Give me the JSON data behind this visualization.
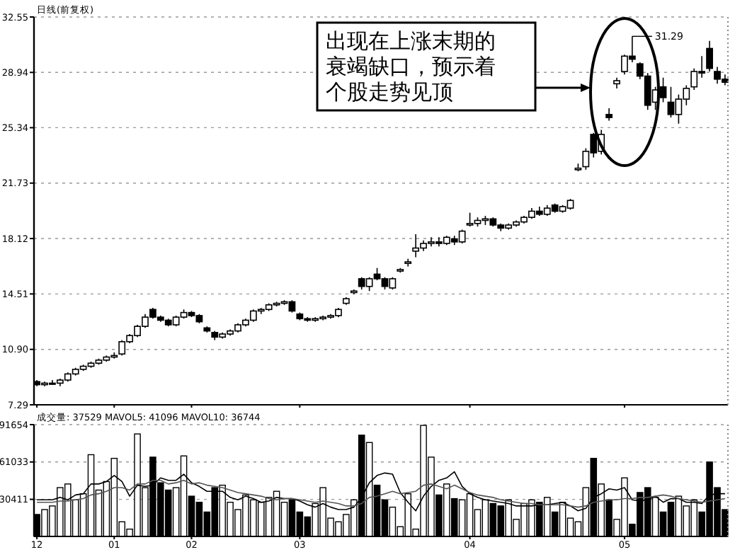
{
  "chart_data": [
    {
      "type": "candlestick",
      "title": "日线(前复权)",
      "color": "#000000",
      "grid": "y",
      "tick_labels": "y",
      "categories": [
        "12",
        null,
        null,
        null,
        null,
        null,
        null,
        null,
        null,
        null,
        "01",
        null,
        null,
        null,
        null,
        null,
        null,
        null,
        null,
        null,
        "02",
        null,
        null,
        null,
        null,
        null,
        null,
        null,
        null,
        null,
        null,
        null,
        null,
        null,
        "03",
        null,
        null,
        null,
        null,
        null,
        null,
        null,
        null,
        null,
        null,
        null,
        null,
        null,
        null,
        null,
        null,
        null,
        null,
        null,
        null,
        null,
        "04",
        null,
        null,
        null,
        null,
        null,
        null,
        null,
        null,
        null,
        null,
        null,
        null,
        null,
        null,
        null,
        null,
        null,
        null,
        null,
        "05",
        null,
        null,
        null,
        null,
        null,
        null,
        null,
        null,
        null,
        null,
        null,
        null,
        null
      ],
      "ohlc": [
        [
          8.8,
          8.9,
          8.5,
          8.6
        ],
        [
          8.6,
          8.8,
          8.5,
          8.7
        ],
        [
          8.7,
          8.9,
          8.6,
          8.7
        ],
        [
          8.7,
          9.0,
          8.5,
          8.9
        ],
        [
          8.9,
          9.4,
          8.8,
          9.3
        ],
        [
          9.3,
          9.7,
          9.2,
          9.6
        ],
        [
          9.6,
          9.9,
          9.5,
          9.8
        ],
        [
          9.8,
          10.1,
          9.7,
          10.0
        ],
        [
          10.0,
          10.3,
          9.9,
          10.2
        ],
        [
          10.2,
          10.5,
          10.1,
          10.4
        ],
        [
          10.4,
          10.7,
          10.3,
          10.5
        ],
        [
          10.6,
          11.5,
          10.5,
          11.4
        ],
        [
          11.4,
          11.9,
          11.3,
          11.8
        ],
        [
          11.8,
          12.5,
          11.7,
          12.4
        ],
        [
          12.4,
          13.2,
          12.3,
          13.0
        ],
        [
          13.5,
          13.6,
          12.9,
          13.0
        ],
        [
          13.0,
          13.1,
          12.7,
          12.8
        ],
        [
          12.8,
          12.9,
          12.4,
          12.5
        ],
        [
          12.5,
          13.1,
          12.4,
          13.0
        ],
        [
          13.0,
          13.5,
          12.9,
          13.3
        ],
        [
          13.3,
          13.4,
          13.0,
          13.1
        ],
        [
          13.1,
          13.2,
          12.6,
          12.7
        ],
        [
          12.3,
          12.4,
          12.0,
          12.1
        ],
        [
          12.0,
          12.1,
          11.5,
          11.7
        ],
        [
          11.7,
          12.0,
          11.6,
          11.9
        ],
        [
          11.9,
          12.2,
          11.8,
          12.1
        ],
        [
          12.1,
          12.6,
          12.0,
          12.5
        ],
        [
          12.5,
          12.9,
          12.4,
          12.8
        ],
        [
          12.8,
          13.5,
          12.7,
          13.4
        ],
        [
          13.4,
          13.6,
          13.2,
          13.5
        ],
        [
          13.5,
          13.9,
          13.4,
          13.8
        ],
        [
          13.8,
          14.0,
          13.7,
          13.9
        ],
        [
          13.9,
          14.1,
          13.8,
          14.0
        ],
        [
          14.0,
          14.1,
          13.3,
          13.4
        ],
        [
          13.2,
          13.3,
          12.8,
          12.9
        ],
        [
          12.9,
          13.0,
          12.7,
          12.8
        ],
        [
          12.8,
          13.0,
          12.7,
          12.9
        ],
        [
          12.9,
          13.1,
          12.8,
          13.0
        ],
        [
          13.0,
          13.2,
          12.9,
          13.1
        ],
        [
          13.1,
          13.6,
          13.0,
          13.5
        ],
        [
          13.9,
          14.3,
          13.8,
          14.2
        ],
        [
          14.6,
          14.8,
          14.5,
          14.7
        ],
        [
          15.5,
          15.6,
          14.8,
          15.0
        ],
        [
          15.0,
          15.6,
          14.7,
          15.5
        ],
        [
          15.8,
          16.2,
          15.4,
          15.5
        ],
        [
          15.5,
          15.6,
          14.8,
          15.0
        ],
        [
          14.9,
          15.6,
          14.8,
          15.5
        ],
        [
          16.0,
          16.2,
          15.9,
          16.1
        ],
        [
          16.5,
          16.8,
          16.3,
          16.6
        ],
        [
          17.3,
          18.4,
          16.9,
          17.5
        ],
        [
          17.5,
          18.0,
          17.3,
          17.8
        ],
        [
          17.8,
          18.2,
          17.6,
          17.9
        ],
        [
          17.9,
          18.2,
          17.6,
          17.8
        ],
        [
          17.8,
          18.3,
          17.7,
          18.2
        ],
        [
          18.1,
          18.3,
          17.7,
          17.9
        ],
        [
          17.9,
          18.7,
          17.8,
          18.6
        ],
        [
          19.0,
          19.8,
          18.9,
          19.1
        ],
        [
          19.1,
          19.5,
          18.9,
          19.3
        ],
        [
          19.3,
          19.6,
          19.0,
          19.4
        ],
        [
          19.4,
          19.5,
          18.9,
          19.0
        ],
        [
          19.0,
          19.1,
          18.6,
          18.8
        ],
        [
          18.8,
          19.1,
          18.7,
          19.0
        ],
        [
          19.0,
          19.3,
          18.9,
          19.2
        ],
        [
          19.2,
          19.6,
          19.1,
          19.5
        ],
        [
          19.5,
          20.1,
          19.4,
          19.9
        ],
        [
          19.9,
          20.2,
          19.6,
          19.7
        ],
        [
          19.7,
          20.3,
          19.6,
          20.1
        ],
        [
          20.3,
          20.4,
          19.8,
          19.9
        ],
        [
          19.9,
          20.3,
          19.8,
          20.2
        ],
        [
          20.1,
          20.7,
          20.0,
          20.6
        ],
        [
          22.6,
          23.0,
          22.5,
          22.7
        ],
        [
          22.8,
          24.0,
          22.6,
          23.8
        ],
        [
          24.9,
          25.0,
          23.4,
          23.7
        ],
        [
          23.8,
          25.2,
          23.6,
          24.9
        ],
        [
          26.2,
          26.6,
          25.8,
          26.0
        ],
        [
          28.2,
          28.6,
          27.9,
          28.4
        ],
        [
          29.0,
          30.1,
          28.8,
          30.0
        ],
        [
          30.0,
          31.29,
          29.6,
          29.8
        ],
        [
          29.5,
          29.6,
          28.5,
          28.7
        ],
        [
          28.7,
          28.9,
          26.5,
          26.8
        ],
        [
          27.0,
          28.0,
          26.5,
          27.8
        ],
        [
          28.0,
          28.6,
          27.0,
          27.3
        ],
        [
          27.0,
          28.0,
          26.0,
          26.2
        ],
        [
          26.2,
          27.5,
          25.6,
          27.2
        ],
        [
          27.2,
          28.1,
          26.8,
          27.9
        ],
        [
          28.0,
          29.2,
          27.8,
          29.0
        ],
        [
          29.0,
          30.0,
          28.6,
          28.9
        ],
        [
          30.5,
          31.0,
          29.0,
          29.2
        ],
        [
          29.0,
          29.3,
          28.2,
          28.5
        ],
        [
          28.5,
          28.8,
          28.1,
          28.3
        ]
      ],
      "ylim": [
        7.29,
        32.55
      ],
      "yticks": [
        7.29,
        {
          "value": 10.9,
          "label": "10.90"
        },
        14.51,
        18.12,
        21.73,
        25.34,
        28.94,
        32.55
      ],
      "annotations": [
        "出现在上涨末期的衰竭缺口，预示着个股走势见顶",
        "31.29"
      ]
    },
    {
      "type": "bar",
      "title": "成交量: 37529 MAVOL5: 41096 MAVOL10: 36744",
      "grid": "y",
      "categories": [
        "12",
        null,
        null,
        null,
        null,
        null,
        null,
        null,
        null,
        null,
        "01",
        null,
        null,
        null,
        null,
        null,
        null,
        null,
        null,
        null,
        "02",
        null,
        null,
        null,
        null,
        null,
        null,
        null,
        null,
        null,
        null,
        null,
        null,
        null,
        "03",
        null,
        null,
        null,
        null,
        null,
        null,
        null,
        null,
        null,
        null,
        null,
        null,
        null,
        null,
        null,
        null,
        null,
        null,
        null,
        null,
        null,
        "04",
        null,
        null,
        null,
        null,
        null,
        null,
        null,
        null,
        null,
        null,
        null,
        null,
        null,
        null,
        null,
        null,
        null,
        null,
        null,
        "05",
        null,
        null,
        null,
        null,
        null,
        null,
        null,
        null,
        null,
        null,
        null,
        null,
        null
      ],
      "ylim": [
        0,
        91654
      ],
      "yticks": [
        30411,
        61033,
        91654
      ],
      "series": [
        {
          "type": "bar",
          "values": [
            18000,
            22000,
            25000,
            40000,
            43000,
            30000,
            35000,
            67000,
            38000,
            45000,
            64000,
            12000,
            6000,
            84000,
            40000,
            65000,
            44000,
            38000,
            40000,
            66000,
            33000,
            28000,
            20000,
            40000,
            42000,
            28000,
            22000,
            34000,
            30000,
            28000,
            32000,
            37000,
            28000,
            30000,
            20000,
            16000,
            27000,
            40000,
            15000,
            12000,
            18000,
            30000,
            83000,
            77000,
            42000,
            30000,
            24000,
            8000,
            35000,
            6000,
            91000,
            65000,
            34000,
            43000,
            31000,
            30000,
            35000,
            22000,
            30000,
            27000,
            25000,
            30000,
            14000,
            27000,
            30000,
            28000,
            32000,
            20000,
            28000,
            15000,
            12000,
            40000,
            64000,
            43000,
            30000,
            14000,
            48000,
            10000,
            36000,
            40000,
            32000,
            20000,
            28000,
            33000,
            25000,
            30000,
            20000,
            61000,
            40000,
            22000
          ],
          "colors": [
            "#000000",
            "#ffffff",
            "#ffffff",
            "#ffffff",
            "#ffffff",
            "#ffffff",
            "#ffffff",
            "#ffffff",
            "#ffffff",
            "#ffffff",
            "#ffffff",
            "#ffffff",
            "#ffffff",
            "#ffffff",
            "#ffffff",
            "#000000",
            "#000000",
            "#000000",
            "#ffffff",
            "#ffffff",
            "#000000",
            "#000000",
            "#000000",
            "#000000",
            "#ffffff",
            "#ffffff",
            "#ffffff",
            "#ffffff",
            "#ffffff",
            "#ffffff",
            "#ffffff",
            "#ffffff",
            "#ffffff",
            "#000000",
            "#000000",
            "#000000",
            "#ffffff",
            "#ffffff",
            "#ffffff",
            "#ffffff",
            "#ffffff",
            "#ffffff",
            "#000000",
            "#ffffff",
            "#000000",
            "#000000",
            "#ffffff",
            "#ffffff",
            "#ffffff",
            "#ffffff",
            "#ffffff",
            "#ffffff",
            "#000000",
            "#ffffff",
            "#000000",
            "#ffffff",
            "#ffffff",
            "#ffffff",
            "#ffffff",
            "#000000",
            "#000000",
            "#ffffff",
            "#ffffff",
            "#ffffff",
            "#ffffff",
            "#000000",
            "#ffffff",
            "#000000",
            "#ffffff",
            "#ffffff",
            "#ffffff",
            "#ffffff",
            "#000000",
            "#ffffff",
            "#000000",
            "#ffffff",
            "#ffffff",
            "#000000",
            "#000000",
            "#000000",
            "#ffffff",
            "#000000",
            "#000000",
            "#ffffff",
            "#ffffff",
            "#ffffff",
            "#000000",
            "#000000",
            "#000000",
            "#000000"
          ]
        },
        {
          "type": "line",
          "color": "#000000",
          "values": [
            30000,
            30000,
            30000,
            32000,
            30000,
            34000,
            35000,
            43000,
            43000,
            45000,
            50000,
            45000,
            33000,
            42000,
            41000,
            42000,
            48000,
            46000,
            46000,
            51000,
            44000,
            41000,
            37000,
            37000,
            37000,
            32000,
            30000,
            33000,
            31000,
            28000,
            29000,
            32000,
            31000,
            31000,
            29000,
            26000,
            24000,
            27000,
            24000,
            22000,
            22000,
            24000,
            32000,
            44000,
            50000,
            52000,
            51000,
            36000,
            28000,
            21000,
            33000,
            41000,
            46000,
            48000,
            53000,
            41000,
            35000,
            32000,
            30000,
            29000,
            28000,
            27000,
            25000,
            25000,
            25000,
            26000,
            26000,
            27000,
            28000,
            25000,
            21000,
            23000,
            32000,
            35000,
            39000,
            38000,
            40000,
            30000,
            29000,
            30000,
            33000,
            28000,
            31000,
            31000,
            28000,
            28000,
            27000,
            34000,
            35000,
            35000
          ]
        },
        {
          "type": "line",
          "color": "#555555",
          "values": [
            28000,
            28000,
            28000,
            29000,
            29000,
            30000,
            31000,
            34000,
            35000,
            37000,
            40000,
            40000,
            38000,
            43000,
            43000,
            46000,
            46000,
            43000,
            44000,
            46000,
            43000,
            44000,
            42000,
            41000,
            40000,
            38000,
            36000,
            35000,
            34000,
            33000,
            31000,
            30000,
            31000,
            31000,
            30000,
            29000,
            28000,
            29000,
            28000,
            27000,
            25000,
            25000,
            27000,
            32000,
            33000,
            35000,
            37000,
            35000,
            36000,
            37000,
            42000,
            43000,
            41000,
            39000,
            42000,
            39000,
            36000,
            34000,
            33000,
            32000,
            30000,
            29000,
            28000,
            27000,
            27000,
            26000,
            26000,
            26000,
            26000,
            25000,
            24000,
            25000,
            28000,
            29000,
            30000,
            30000,
            31000,
            31000,
            32000,
            32000,
            33000,
            34000,
            33000,
            31000,
            30000,
            29000,
            28000,
            29000,
            30000,
            31000
          ]
        }
      ]
    }
  ]
}
